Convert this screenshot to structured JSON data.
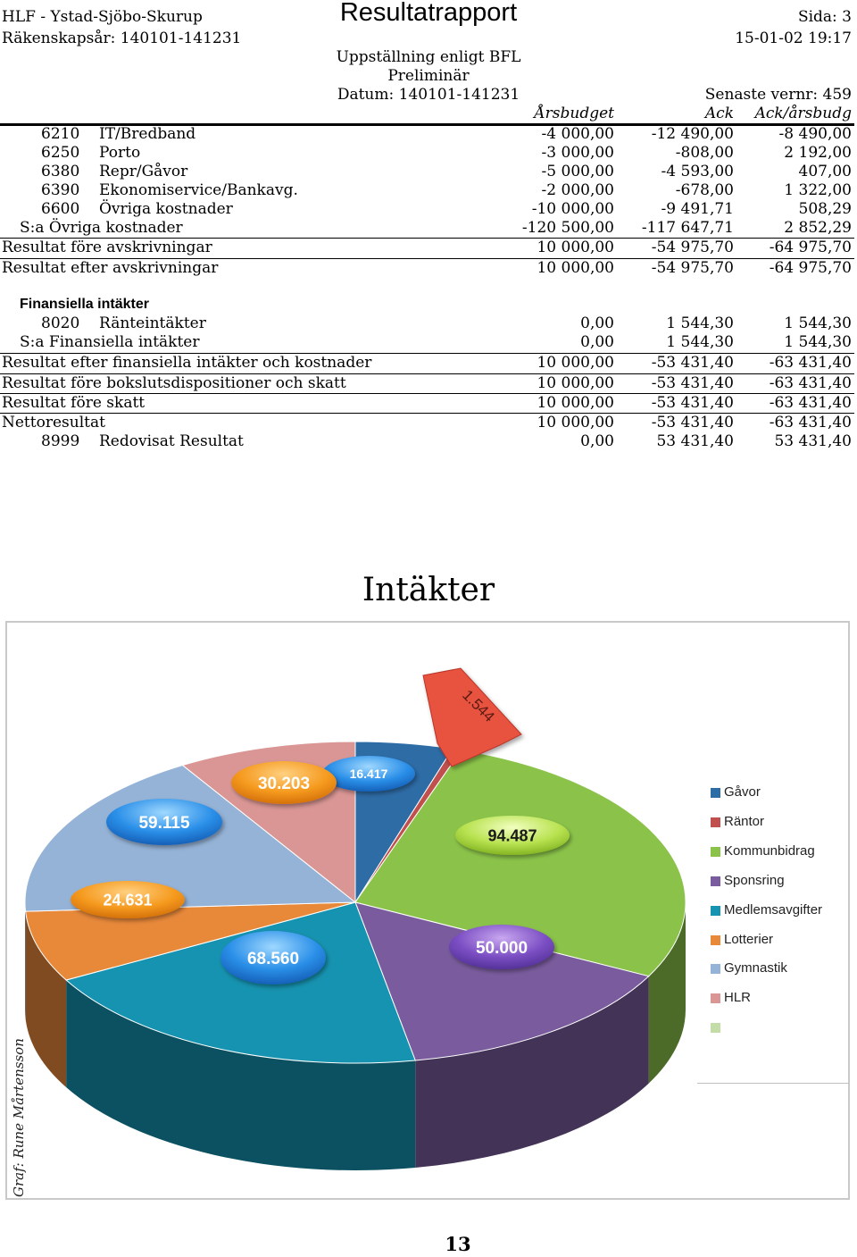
{
  "header": {
    "org": "HLF - Ystad-Sjöbo-Skurup",
    "title": "Resultatrapport",
    "page": "Sida: 3",
    "fiscal_year": "Räkenskapsår: 140101-141231",
    "printed": "15-01-02 19:17",
    "layout": "Uppställning enligt BFL",
    "status": "Preliminär",
    "date_range": "Datum: 140101-141231",
    "version": "Senaste vernr: 459"
  },
  "columns": {
    "budget": "Årsbudget",
    "ack": "Ack",
    "ack_budget": "Ack/årsbudg"
  },
  "rows": [
    {
      "code": "6210",
      "name": "IT/Bredband",
      "budget": "-4 000,00",
      "ack": "-12 490,00",
      "diff": "-8 490,00"
    },
    {
      "code": "6250",
      "name": "Porto",
      "budget": "-3 000,00",
      "ack": "-808,00",
      "diff": "2 192,00"
    },
    {
      "code": "6380",
      "name": "Repr/Gåvor",
      "budget": "-5 000,00",
      "ack": "-4 593,00",
      "diff": "407,00"
    },
    {
      "code": "6390",
      "name": "Ekonomiservice/Bankavg.",
      "budget": "-2 000,00",
      "ack": "-678,00",
      "diff": "1 322,00"
    },
    {
      "code": "6600",
      "name": "Övriga kostnader",
      "budget": "-10 000,00",
      "ack": "-9 491,71",
      "diff": "508,29"
    }
  ],
  "sum_ovriga": {
    "label": "S:a Övriga kostnader",
    "budget": "-120 500,00",
    "ack": "-117 647,71",
    "diff": "2 852,29"
  },
  "res_fore_avskr": {
    "label": "Resultat före avskrivningar",
    "budget": "10 000,00",
    "ack": "-54 975,70",
    "diff": "-64 975,70"
  },
  "res_efter_avskr": {
    "label": "Resultat efter avskrivningar",
    "budget": "10 000,00",
    "ack": "-54 975,70",
    "diff": "-64 975,70"
  },
  "fin": {
    "heading": "Finansiella intäkter",
    "row": {
      "code": "8020",
      "name": "Ränteintäkter",
      "budget": "0,00",
      "ack": "1 544,30",
      "diff": "1 544,30"
    },
    "sum": {
      "label": "S:a Finansiella intäkter",
      "budget": "0,00",
      "ack": "1 544,30",
      "diff": "1 544,30"
    }
  },
  "results": [
    {
      "label": "Resultat efter finansiella intäkter och kostnader",
      "budget": "10 000,00",
      "ack": "-53 431,40",
      "diff": "-63 431,40"
    },
    {
      "label": "Resultat före bokslutsdispositioner och skatt",
      "budget": "10 000,00",
      "ack": "-53 431,40",
      "diff": "-63 431,40"
    },
    {
      "label": "Resultat före skatt",
      "budget": "10 000,00",
      "ack": "-53 431,40",
      "diff": "-63 431,40"
    },
    {
      "label": "Nettoresultat",
      "budget": "10 000,00",
      "ack": "-53 431,40",
      "diff": "-63 431,40"
    }
  ],
  "redovisat": {
    "code": "8999",
    "name": "Redovisat Resultat",
    "budget": "0,00",
    "ack": "53 431,40",
    "diff": "53 431,40"
  },
  "chart": {
    "title": "Intäkter",
    "credit": "Graf: Rune Mårtensson",
    "colors": {
      "Gåvor": "#2e6ca6",
      "Räntor": "#c0504d",
      "Kommunbidrag": "#8bc34a",
      "Sponsring": "#7a5c9e",
      "Medlemsavgifter": "#1693b0",
      "Lotterier": "#e8893a",
      "Gymnastik": "#95b3d7",
      "HLR": "#d99694",
      "Övrigt": "#c4dca8"
    },
    "legend": [
      "Gåvor",
      "Räntor",
      "Kommunbidrag",
      "Sponsring",
      "Medlemsavgifter",
      "Lotterier",
      "Gymnastik",
      "HLR",
      ""
    ],
    "labels": {
      "Gåvor": "16.417",
      "Räntor": "1.544",
      "Kommunbidrag": "94.487",
      "Sponsring": "50.000",
      "Medlemsavgifter": "68.560",
      "Lotterier": "24.631",
      "Gymnastik": "59.115",
      "HLR": "30.203"
    }
  },
  "chart_data": {
    "type": "pie",
    "title": "Intäkter",
    "categories": [
      "Gåvor",
      "Räntor",
      "Kommunbidrag",
      "Sponsring",
      "Medlemsavgifter",
      "Lotterier",
      "Gymnastik",
      "HLR"
    ],
    "values": [
      16417,
      1544,
      94487,
      50000,
      68560,
      24631,
      59115,
      30203
    ],
    "legend_position": "right"
  },
  "footer": {
    "page_number": "13"
  }
}
